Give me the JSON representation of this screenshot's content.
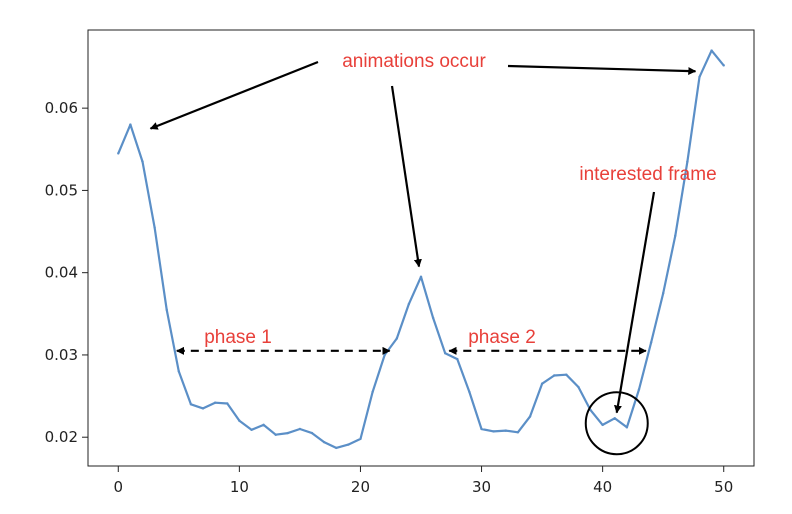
{
  "chart_data": {
    "type": "line",
    "title": "",
    "xlabel": "",
    "ylabel": "",
    "xlim": [
      -2.5,
      52.5
    ],
    "ylim": [
      0.0165,
      0.0695
    ],
    "xticks": [
      0,
      10,
      20,
      30,
      40,
      50
    ],
    "xtick_labels": [
      "0",
      "10",
      "20",
      "30",
      "40",
      "50"
    ],
    "yticks": [
      0.02,
      0.03,
      0.04,
      0.05,
      0.06
    ],
    "ytick_labels": [
      "0.02",
      "0.03",
      "0.04",
      "0.05",
      "0.06"
    ],
    "grid": false,
    "legend": "none",
    "series": [
      {
        "color": "#5b8fc7",
        "x": [
          0,
          1,
          2,
          3,
          4,
          5,
          6,
          7,
          8,
          9,
          10,
          11,
          12,
          13,
          14,
          15,
          16,
          17,
          18,
          19,
          20,
          21,
          22,
          23,
          24,
          25,
          26,
          27,
          28,
          29,
          30,
          31,
          32,
          33,
          34,
          35,
          36,
          37,
          38,
          39,
          40,
          41,
          42,
          43,
          44,
          45,
          46,
          47,
          48,
          49,
          50
        ],
        "values": [
          0.0545,
          0.058,
          0.0535,
          0.0455,
          0.0355,
          0.028,
          0.024,
          0.0235,
          0.0242,
          0.0241,
          0.022,
          0.0209,
          0.0215,
          0.0203,
          0.0205,
          0.021,
          0.0205,
          0.0194,
          0.0187,
          0.0191,
          0.0198,
          0.0255,
          0.03,
          0.032,
          0.0362,
          0.0395,
          0.0345,
          0.0302,
          0.0295,
          0.0255,
          0.021,
          0.0207,
          0.0208,
          0.0206,
          0.0225,
          0.0265,
          0.0275,
          0.0276,
          0.0261,
          0.0233,
          0.0215,
          0.0223,
          0.0212,
          0.0258,
          0.0315,
          0.0375,
          0.0445,
          0.0535,
          0.0638,
          0.067,
          0.0652
        ]
      }
    ],
    "annotations": [
      {
        "text": "animations occur",
        "color": "#e8403a"
      },
      {
        "text": "interested frame",
        "color": "#e8403a"
      },
      {
        "text": "phase 1",
        "color": "#e8403a",
        "span": [
          5,
          22
        ]
      },
      {
        "text": "phase 2",
        "color": "#e8403a",
        "span": [
          27.5,
          43
        ]
      }
    ],
    "arrow_targets": {
      "animations_occur": [
        [
          2,
          0.058
        ],
        [
          25,
          0.0405
        ],
        [
          47.5,
          0.064
        ]
      ],
      "interested_frame": [
        41,
        0.0225
      ]
    },
    "highlight_circle": {
      "x": 41,
      "y": 0.0217
    }
  }
}
